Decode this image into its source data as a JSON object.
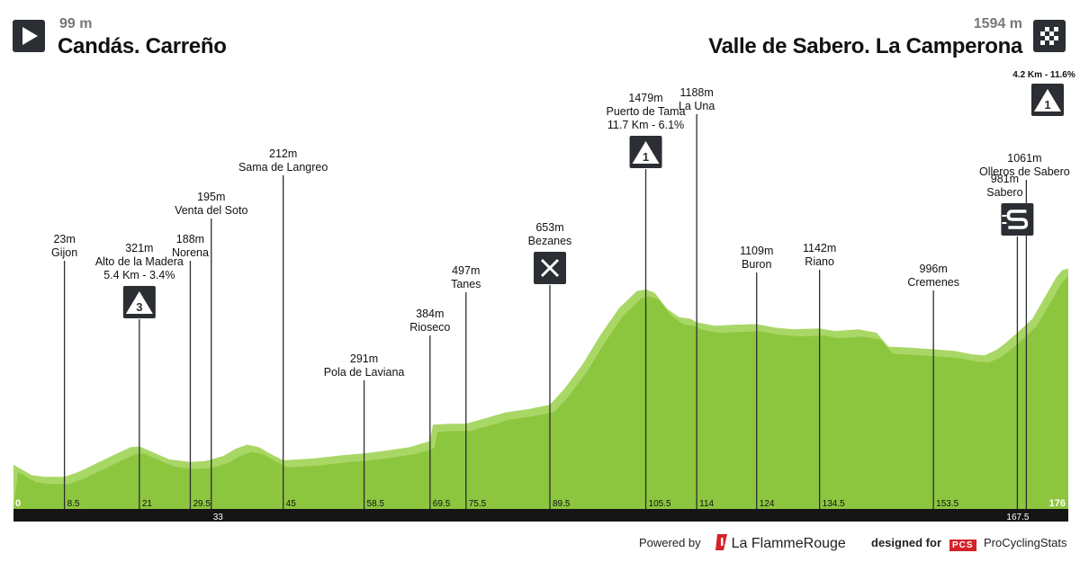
{
  "header": {
    "start": {
      "altitude": "99 m",
      "name": "Candás. Carreño"
    },
    "finish": {
      "altitude": "1594 m",
      "name": "Valle de Sabero. La Camperona"
    },
    "finish_climb": {
      "text": "4.2 Km - 11.6%",
      "category": "1"
    }
  },
  "footer": {
    "powered_by": "Powered by",
    "brand_a": "La Flamme",
    "brand_b": "Rouge",
    "designed_for": "designed for",
    "pcs_logo": "PCS",
    "pcs_name": "ProCyclingStats"
  },
  "colors": {
    "profile": "#8cc63f",
    "profile_light": "#a9d766",
    "axis_bar": "#151515",
    "icon_bg": "#2b2e33"
  },
  "chart_data": {
    "type": "area",
    "xlim": [
      0,
      176
    ],
    "axis_ticks": [
      {
        "label": "0",
        "km": 0
      },
      {
        "label": "8.5",
        "km": 8.5
      },
      {
        "label": "21",
        "km": 21
      },
      {
        "label": "29.5",
        "km": 29.5
      },
      {
        "label": "33",
        "km": 33
      },
      {
        "label": "45",
        "km": 45
      },
      {
        "label": "58.5",
        "km": 58.5
      },
      {
        "label": "69.5",
        "km": 69.5
      },
      {
        "label": "75.5",
        "km": 75.5
      },
      {
        "label": "89.5",
        "km": 89.5
      },
      {
        "label": "105.5",
        "km": 105.5
      },
      {
        "label": "114",
        "km": 114
      },
      {
        "label": "124",
        "km": 124
      },
      {
        "label": "134.5",
        "km": 134.5
      },
      {
        "label": "153.5",
        "km": 153.5
      },
      {
        "label": "167.5",
        "km": 167.5
      },
      {
        "label": "176",
        "km": 176
      }
    ],
    "profile": [
      [
        0,
        99
      ],
      [
        1,
        80
      ],
      [
        3,
        40
      ],
      [
        5,
        30
      ],
      [
        8.5,
        30
      ],
      [
        11,
        60
      ],
      [
        14,
        110
      ],
      [
        17,
        160
      ],
      [
        19.5,
        200
      ],
      [
        21,
        205
      ],
      [
        23,
        175
      ],
      [
        26,
        130
      ],
      [
        29.5,
        115
      ],
      [
        32,
        120
      ],
      [
        35,
        150
      ],
      [
        37,
        190
      ],
      [
        39,
        215
      ],
      [
        41,
        200
      ],
      [
        43,
        160
      ],
      [
        45,
        125
      ],
      [
        50,
        135
      ],
      [
        55,
        155
      ],
      [
        58.5,
        165
      ],
      [
        62,
        180
      ],
      [
        66,
        200
      ],
      [
        69,
        230
      ],
      [
        69.5,
        240
      ],
      [
        70,
        330
      ],
      [
        73,
        335
      ],
      [
        75.5,
        335
      ],
      [
        79,
        370
      ],
      [
        82,
        400
      ],
      [
        86,
        420
      ],
      [
        89.5,
        445
      ],
      [
        92,
        540
      ],
      [
        95,
        680
      ],
      [
        98,
        850
      ],
      [
        101,
        1000
      ],
      [
        104,
        1100
      ],
      [
        105.5,
        1110
      ],
      [
        107,
        1090
      ],
      [
        109,
        1000
      ],
      [
        111,
        950
      ],
      [
        113,
        940
      ],
      [
        114,
        920
      ],
      [
        117,
        900
      ],
      [
        120,
        905
      ],
      [
        124,
        910
      ],
      [
        127,
        890
      ],
      [
        130,
        880
      ],
      [
        134.5,
        885
      ],
      [
        137,
        870
      ],
      [
        141,
        880
      ],
      [
        144,
        860
      ],
      [
        146,
        780
      ],
      [
        149,
        775
      ],
      [
        153.5,
        765
      ],
      [
        157,
        755
      ],
      [
        160,
        735
      ],
      [
        162,
        730
      ],
      [
        164,
        760
      ],
      [
        165.5,
        800
      ],
      [
        167.5,
        860
      ],
      [
        170,
        940
      ],
      [
        172,
        1060
      ],
      [
        174,
        1180
      ],
      [
        175,
        1220
      ],
      [
        176,
        1230
      ]
    ],
    "points": [
      {
        "name": "Gijon",
        "alt": "23m",
        "km": 8.5,
        "top": 290
      },
      {
        "name": "Alto de la Madera",
        "alt": "321m",
        "km": 21,
        "top": 355,
        "climb": "5.4 Km - 3.4%",
        "category": "3"
      },
      {
        "name": "Norena",
        "alt": "188m",
        "km": 29.5,
        "top": 290
      },
      {
        "name": "Venta del Soto",
        "alt": "195m",
        "km": 33,
        "top": 243
      },
      {
        "name": "Sama de Langreo",
        "alt": "212m",
        "km": 45,
        "top": 195
      },
      {
        "name": "Pola de Laviana",
        "alt": "291m",
        "km": 58.5,
        "top": 423
      },
      {
        "name": "Rioseco",
        "alt": "384m",
        "km": 69.5,
        "top": 373
      },
      {
        "name": "Tanes",
        "alt": "497m",
        "km": 75.5,
        "top": 325
      },
      {
        "name": "Bezanes",
        "alt": "653m",
        "km": 89.5,
        "top": 317,
        "icon": "feed"
      },
      {
        "name": "Puerto de Tama",
        "alt": "1479m",
        "km": 105.5,
        "top": 188,
        "climb": "11.7 Km - 6.1%",
        "category": "1"
      },
      {
        "name": "La Una",
        "alt": "1188m",
        "km": 114,
        "top": 127
      },
      {
        "name": "Buron",
        "alt": "1109m",
        "km": 124,
        "top": 303
      },
      {
        "name": "Riano",
        "alt": "1142m",
        "km": 134.5,
        "top": 300
      },
      {
        "name": "Cremenes",
        "alt": "996m",
        "km": 153.5,
        "top": 323
      },
      {
        "name": "Sabero",
        "alt": "981m",
        "km": 167.5,
        "top": 263,
        "icon": "sprint",
        "label_offset": -14
      },
      {
        "name": "Olleros de Sabero",
        "alt": "1061m",
        "km": 169,
        "top": 200,
        "label_offset": -2
      }
    ]
  }
}
